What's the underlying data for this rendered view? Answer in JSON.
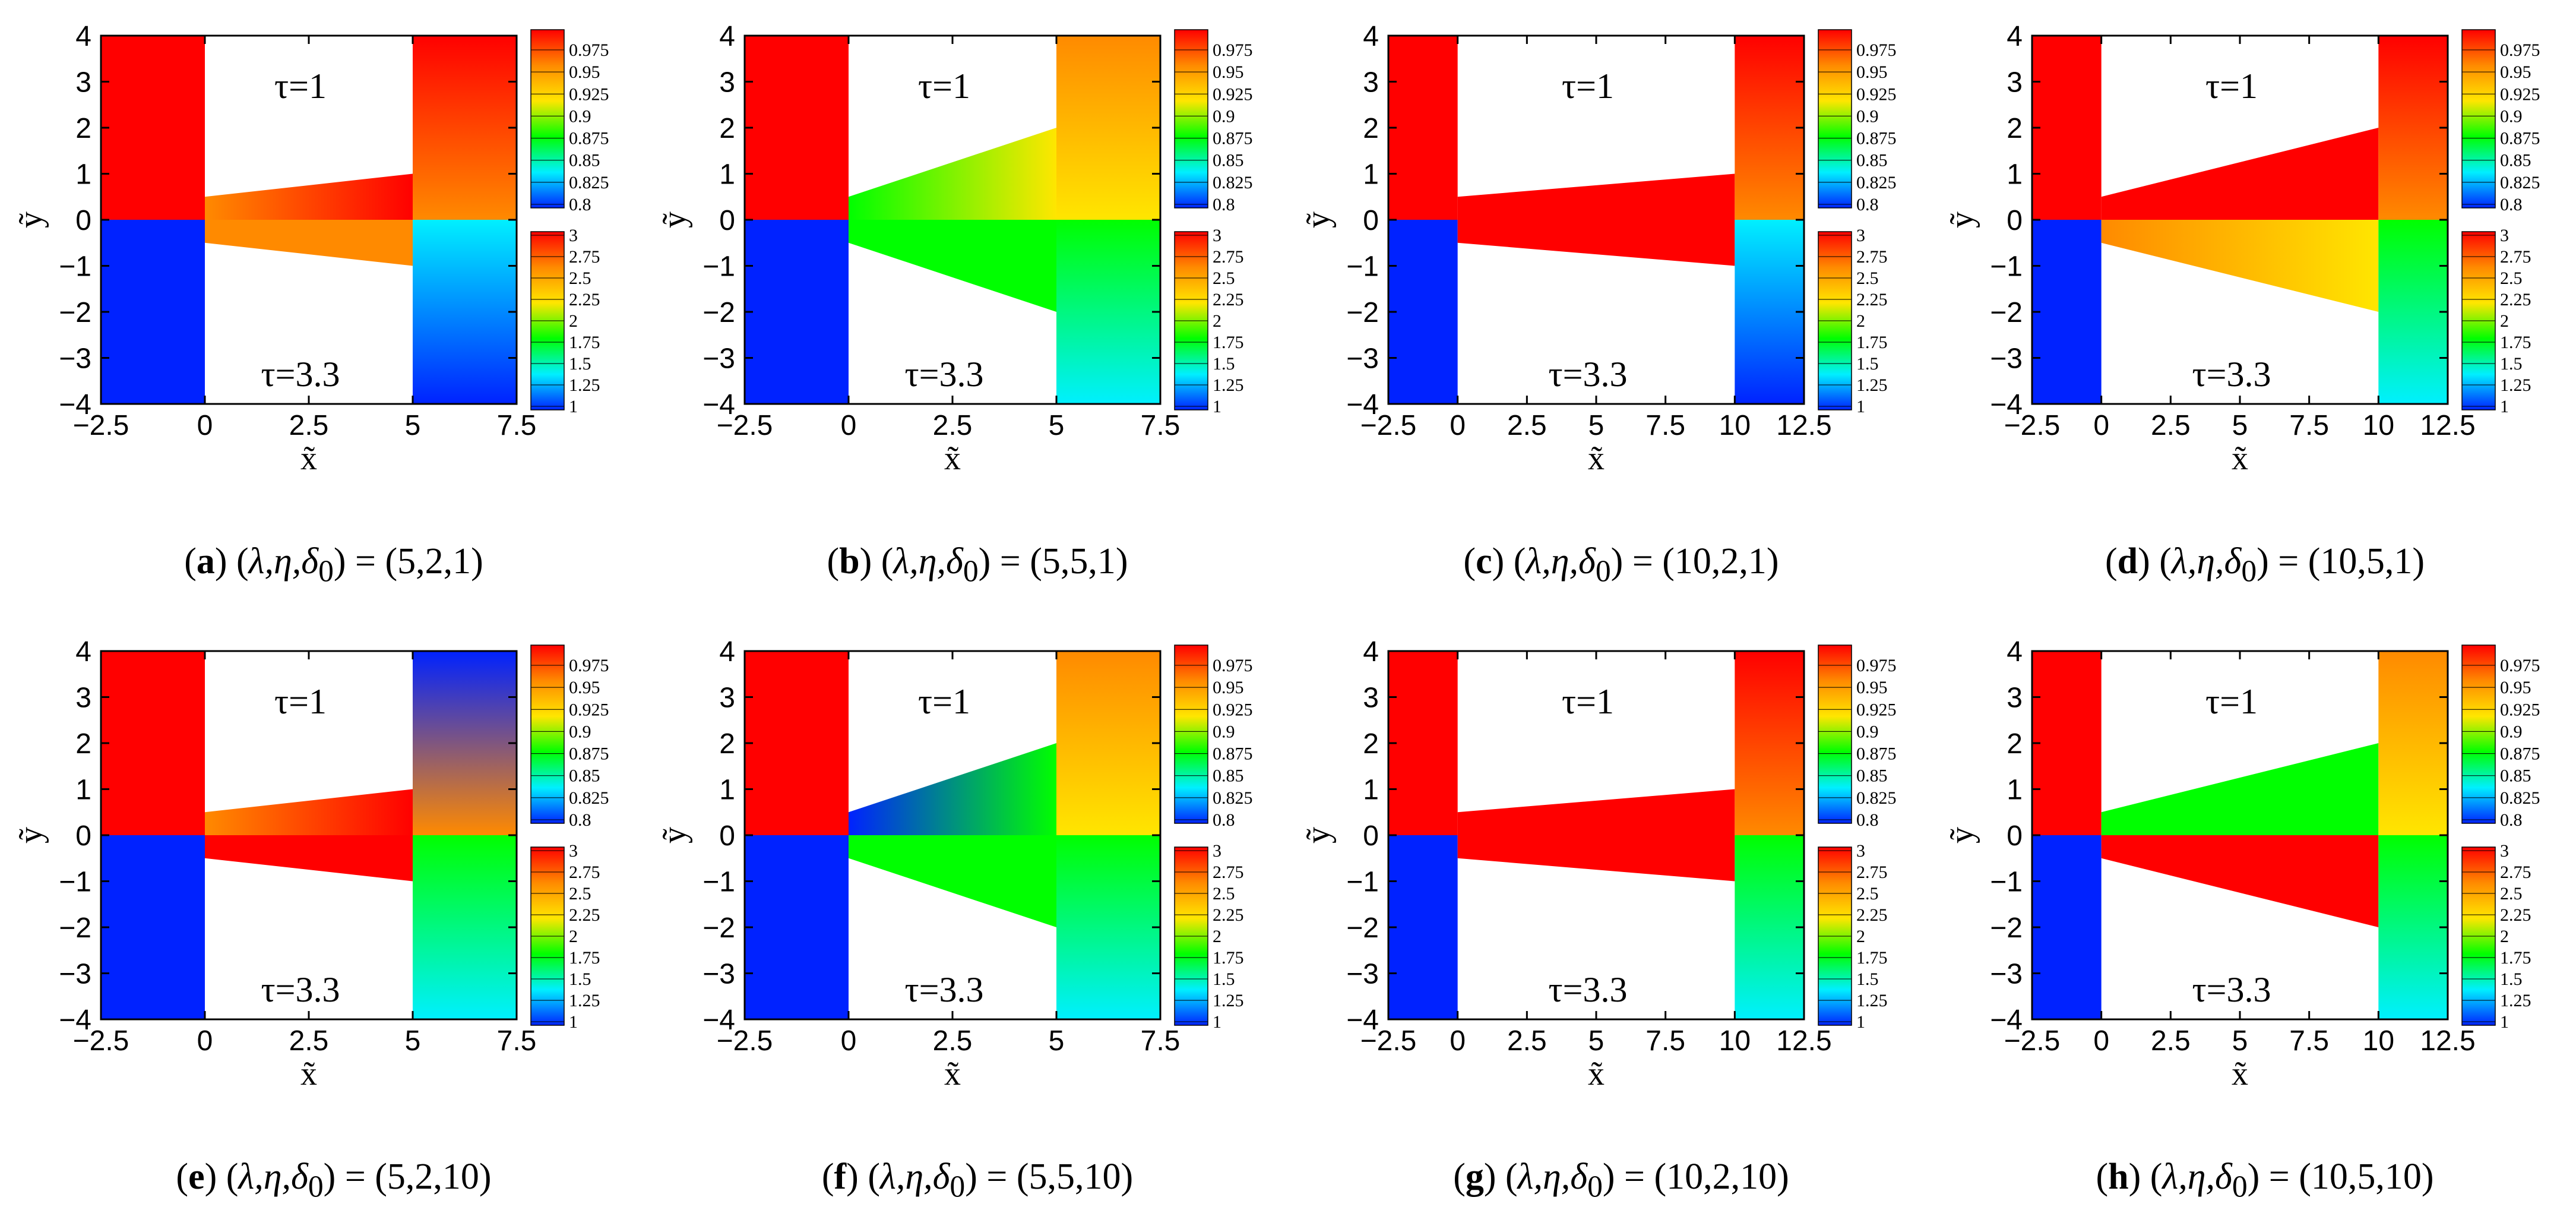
{
  "colors": {
    "red": "#ff0000",
    "orange": "#ff8a00",
    "yellow": "#ffe600",
    "green": "#00ff00",
    "cyan": "#00f0ff",
    "blue": "#0022ff"
  },
  "chart_data": [
    {
      "id": "a",
      "type": "heatmap",
      "caption": {
        "letter": "a",
        "params": "λ,η,δ",
        "sub": "0",
        "value": "(5,2,1)"
      },
      "lambda": 5,
      "eta": 2,
      "delta0": 1,
      "xlabel": "x̃",
      "ylabel": "ỹ",
      "xlim": [
        -2.5,
        7.5
      ],
      "ylim": [
        -4,
        4
      ],
      "xticks": [
        -2.5,
        0,
        2.5,
        5,
        7.5
      ],
      "xtick_labels": [
        "−2.5",
        "0",
        "2.5",
        "5",
        "7.5"
      ],
      "yticks": [
        4,
        3,
        2,
        1,
        0,
        -1,
        -2,
        -3,
        -4
      ],
      "ytick_labels": [
        "4",
        "3",
        "2",
        "1",
        "0",
        "−1",
        "−2",
        "−3",
        "−4"
      ],
      "top_label": "τ=1",
      "bottom_label": "τ=3.3",
      "colorbar_top": [
        "0.975",
        "0.95",
        "0.925",
        "0.9",
        "0.875",
        "0.85",
        "0.825",
        "0.8"
      ],
      "colorbar_bottom": [
        "3",
        "2.75",
        "2.5",
        "2.25",
        "2",
        "1.75",
        "1.5",
        "1.25",
        "1"
      ],
      "field_top": {
        "left": "red",
        "channel": [
          "orange",
          "red"
        ],
        "right": [
          "red",
          "orange"
        ]
      },
      "field_bottom": {
        "left": "blue",
        "channel": [
          "orange",
          "orange"
        ],
        "right": [
          "cyan",
          "blue"
        ]
      }
    },
    {
      "id": "b",
      "type": "heatmap",
      "caption": {
        "letter": "b",
        "params": "λ,η,δ",
        "sub": "0",
        "value": "(5,5,1)"
      },
      "lambda": 5,
      "eta": 5,
      "delta0": 1,
      "xlabel": "x̃",
      "ylabel": "ỹ",
      "xlim": [
        -2.5,
        7.5
      ],
      "ylim": [
        -4,
        4
      ],
      "xticks": [
        -2.5,
        0,
        2.5,
        5,
        7.5
      ],
      "xtick_labels": [
        "−2.5",
        "0",
        "2.5",
        "5",
        "7.5"
      ],
      "yticks": [
        4,
        3,
        2,
        1,
        0,
        -1,
        -2,
        -3,
        -4
      ],
      "ytick_labels": [
        "4",
        "3",
        "2",
        "1",
        "0",
        "−1",
        "−2",
        "−3",
        "−4"
      ],
      "top_label": "τ=1",
      "bottom_label": "τ=3.3",
      "colorbar_top": [
        "0.975",
        "0.95",
        "0.925",
        "0.9",
        "0.875",
        "0.85",
        "0.825",
        "0.8"
      ],
      "colorbar_bottom": [
        "3",
        "2.75",
        "2.5",
        "2.25",
        "2",
        "1.75",
        "1.5",
        "1.25",
        "1"
      ],
      "field_top": {
        "left": "red",
        "channel": [
          "green",
          "yellow"
        ],
        "right": [
          "orange",
          "yellow"
        ]
      },
      "field_bottom": {
        "left": "blue",
        "channel": [
          "green",
          "green"
        ],
        "right": [
          "green",
          "cyan"
        ]
      }
    },
    {
      "id": "c",
      "type": "heatmap",
      "caption": {
        "letter": "c",
        "params": "λ,η,δ",
        "sub": "0",
        "value": "(10,2,1)"
      },
      "lambda": 10,
      "eta": 2,
      "delta0": 1,
      "xlabel": "x̃",
      "ylabel": "ỹ",
      "xlim": [
        -2.5,
        12.5
      ],
      "ylim": [
        -4,
        4
      ],
      "xticks": [
        -2.5,
        0,
        2.5,
        5,
        7.5,
        10,
        12.5
      ],
      "xtick_labels": [
        "−2.5",
        "0",
        "2.5",
        "5",
        "7.5",
        "10",
        "12.5"
      ],
      "yticks": [
        4,
        3,
        2,
        1,
        0,
        -1,
        -2,
        -3,
        -4
      ],
      "ytick_labels": [
        "4",
        "3",
        "2",
        "1",
        "0",
        "−1",
        "−2",
        "−3",
        "−4"
      ],
      "top_label": "τ=1",
      "bottom_label": "τ=3.3",
      "colorbar_top": [
        "0.975",
        "0.95",
        "0.925",
        "0.9",
        "0.875",
        "0.85",
        "0.825",
        "0.8"
      ],
      "colorbar_bottom": [
        "3",
        "2.75",
        "2.5",
        "2.25",
        "2",
        "1.75",
        "1.5",
        "1.25",
        "1"
      ],
      "field_top": {
        "left": "red",
        "channel": [
          "red",
          "red"
        ],
        "right": [
          "red",
          "orange"
        ]
      },
      "field_bottom": {
        "left": "blue",
        "channel": [
          "red",
          "red"
        ],
        "right": [
          "cyan",
          "blue"
        ]
      }
    },
    {
      "id": "d",
      "type": "heatmap",
      "caption": {
        "letter": "d",
        "params": "λ,η,δ",
        "sub": "0",
        "value": "(10,5,1)"
      },
      "lambda": 10,
      "eta": 5,
      "delta0": 1,
      "xlabel": "x̃",
      "ylabel": "ỹ",
      "xlim": [
        -2.5,
        12.5
      ],
      "ylim": [
        -4,
        4
      ],
      "xticks": [
        -2.5,
        0,
        2.5,
        5,
        7.5,
        10,
        12.5
      ],
      "xtick_labels": [
        "−2.5",
        "0",
        "2.5",
        "5",
        "7.5",
        "10",
        "12.5"
      ],
      "yticks": [
        4,
        3,
        2,
        1,
        0,
        -1,
        -2,
        -3,
        -4
      ],
      "ytick_labels": [
        "4",
        "3",
        "2",
        "1",
        "0",
        "−1",
        "−2",
        "−3",
        "−4"
      ],
      "top_label": "τ=1",
      "bottom_label": "τ=3.3",
      "colorbar_top": [
        "0.975",
        "0.95",
        "0.925",
        "0.9",
        "0.875",
        "0.85",
        "0.825",
        "0.8"
      ],
      "colorbar_bottom": [
        "3",
        "2.75",
        "2.5",
        "2.25",
        "2",
        "1.75",
        "1.5",
        "1.25",
        "1"
      ],
      "field_top": {
        "left": "red",
        "channel": [
          "red",
          "red"
        ],
        "right": [
          "red",
          "orange"
        ]
      },
      "field_bottom": {
        "left": "blue",
        "channel": [
          "orange",
          "yellow"
        ],
        "right": [
          "green",
          "cyan"
        ]
      }
    },
    {
      "id": "e",
      "type": "heatmap",
      "caption": {
        "letter": "e",
        "params": "λ,η,δ",
        "sub": "0",
        "value": "(5,2,10)"
      },
      "lambda": 5,
      "eta": 2,
      "delta0": 10,
      "xlabel": "x̃",
      "ylabel": "ỹ",
      "xlim": [
        -2.5,
        7.5
      ],
      "ylim": [
        -4,
        4
      ],
      "xticks": [
        -2.5,
        0,
        2.5,
        5,
        7.5
      ],
      "xtick_labels": [
        "−2.5",
        "0",
        "2.5",
        "5",
        "7.5"
      ],
      "yticks": [
        4,
        3,
        2,
        1,
        0,
        -1,
        -2,
        -3,
        -4
      ],
      "ytick_labels": [
        "4",
        "3",
        "2",
        "1",
        "0",
        "−1",
        "−2",
        "−3",
        "−4"
      ],
      "top_label": "τ=1",
      "bottom_label": "τ=3.3",
      "colorbar_top": [
        "0.975",
        "0.95",
        "0.925",
        "0.9",
        "0.875",
        "0.85",
        "0.825",
        "0.8"
      ],
      "colorbar_bottom": [
        "3",
        "2.75",
        "2.5",
        "2.25",
        "2",
        "1.75",
        "1.5",
        "1.25",
        "1"
      ],
      "field_top": {
        "left": "red",
        "channel": [
          "orange",
          "red"
        ],
        "right": [
          "blue",
          "orange"
        ]
      },
      "field_bottom": {
        "left": "blue",
        "channel": [
          "red",
          "red"
        ],
        "right": [
          "green",
          "cyan"
        ]
      }
    },
    {
      "id": "f",
      "type": "heatmap",
      "caption": {
        "letter": "f",
        "params": "λ,η,δ",
        "sub": "0",
        "value": "(5,5,10)"
      },
      "lambda": 5,
      "eta": 5,
      "delta0": 10,
      "xlabel": "x̃",
      "ylabel": "ỹ",
      "xlim": [
        -2.5,
        7.5
      ],
      "ylim": [
        -4,
        4
      ],
      "xticks": [
        -2.5,
        0,
        2.5,
        5,
        7.5
      ],
      "xtick_labels": [
        "−2.5",
        "0",
        "2.5",
        "5",
        "7.5"
      ],
      "yticks": [
        4,
        3,
        2,
        1,
        0,
        -1,
        -2,
        -3,
        -4
      ],
      "ytick_labels": [
        "4",
        "3",
        "2",
        "1",
        "0",
        "−1",
        "−2",
        "−3",
        "−4"
      ],
      "top_label": "τ=1",
      "bottom_label": "τ=3.3",
      "colorbar_top": [
        "0.975",
        "0.95",
        "0.925",
        "0.9",
        "0.875",
        "0.85",
        "0.825",
        "0.8"
      ],
      "colorbar_bottom": [
        "3",
        "2.75",
        "2.5",
        "2.25",
        "2",
        "1.75",
        "1.5",
        "1.25",
        "1"
      ],
      "field_top": {
        "left": "red",
        "channel": [
          "blue",
          "green"
        ],
        "right": [
          "orange",
          "yellow"
        ]
      },
      "field_bottom": {
        "left": "blue",
        "channel": [
          "green",
          "green"
        ],
        "right": [
          "green",
          "cyan"
        ]
      }
    },
    {
      "id": "g",
      "type": "heatmap",
      "caption": {
        "letter": "g",
        "params": "λ,η,δ",
        "sub": "0",
        "value": "(10,2,10)"
      },
      "lambda": 10,
      "eta": 2,
      "delta0": 10,
      "xlabel": "x̃",
      "ylabel": "ỹ",
      "xlim": [
        -2.5,
        12.5
      ],
      "ylim": [
        -4,
        4
      ],
      "xticks": [
        -2.5,
        0,
        2.5,
        5,
        7.5,
        10,
        12.5
      ],
      "xtick_labels": [
        "−2.5",
        "0",
        "2.5",
        "5",
        "7.5",
        "10",
        "12.5"
      ],
      "yticks": [
        4,
        3,
        2,
        1,
        0,
        -1,
        -2,
        -3,
        -4
      ],
      "ytick_labels": [
        "4",
        "3",
        "2",
        "1",
        "0",
        "−1",
        "−2",
        "−3",
        "−4"
      ],
      "top_label": "τ=1",
      "bottom_label": "τ=3.3",
      "colorbar_top": [
        "0.975",
        "0.95",
        "0.925",
        "0.9",
        "0.875",
        "0.85",
        "0.825",
        "0.8"
      ],
      "colorbar_bottom": [
        "3",
        "2.75",
        "2.5",
        "2.25",
        "2",
        "1.75",
        "1.5",
        "1.25",
        "1"
      ],
      "field_top": {
        "left": "red",
        "channel": [
          "red",
          "red"
        ],
        "right": [
          "red",
          "orange"
        ]
      },
      "field_bottom": {
        "left": "blue",
        "channel": [
          "red",
          "red"
        ],
        "right": [
          "green",
          "cyan"
        ]
      }
    },
    {
      "id": "h",
      "type": "heatmap",
      "caption": {
        "letter": "h",
        "params": "λ,η,δ",
        "sub": "0",
        "value": "(10,5,10)"
      },
      "lambda": 10,
      "eta": 5,
      "delta0": 10,
      "xlabel": "x̃",
      "ylabel": "ỹ",
      "xlim": [
        -2.5,
        12.5
      ],
      "ylim": [
        -4,
        4
      ],
      "xticks": [
        -2.5,
        0,
        2.5,
        5,
        7.5,
        10,
        12.5
      ],
      "xtick_labels": [
        "−2.5",
        "0",
        "2.5",
        "5",
        "7.5",
        "10",
        "12.5"
      ],
      "yticks": [
        4,
        3,
        2,
        1,
        0,
        -1,
        -2,
        -3,
        -4
      ],
      "ytick_labels": [
        "4",
        "3",
        "2",
        "1",
        "0",
        "−1",
        "−2",
        "−3",
        "−4"
      ],
      "top_label": "τ=1",
      "bottom_label": "τ=3.3",
      "colorbar_top": [
        "0.975",
        "0.95",
        "0.925",
        "0.9",
        "0.875",
        "0.85",
        "0.825",
        "0.8"
      ],
      "colorbar_bottom": [
        "3",
        "2.75",
        "2.5",
        "2.25",
        "2",
        "1.75",
        "1.5",
        "1.25",
        "1"
      ],
      "field_top": {
        "left": "red",
        "channel": [
          "green",
          "green"
        ],
        "right": [
          "orange",
          "yellow"
        ]
      },
      "field_bottom": {
        "left": "blue",
        "channel": [
          "red",
          "red"
        ],
        "right": [
          "green",
          "cyan"
        ]
      }
    }
  ]
}
